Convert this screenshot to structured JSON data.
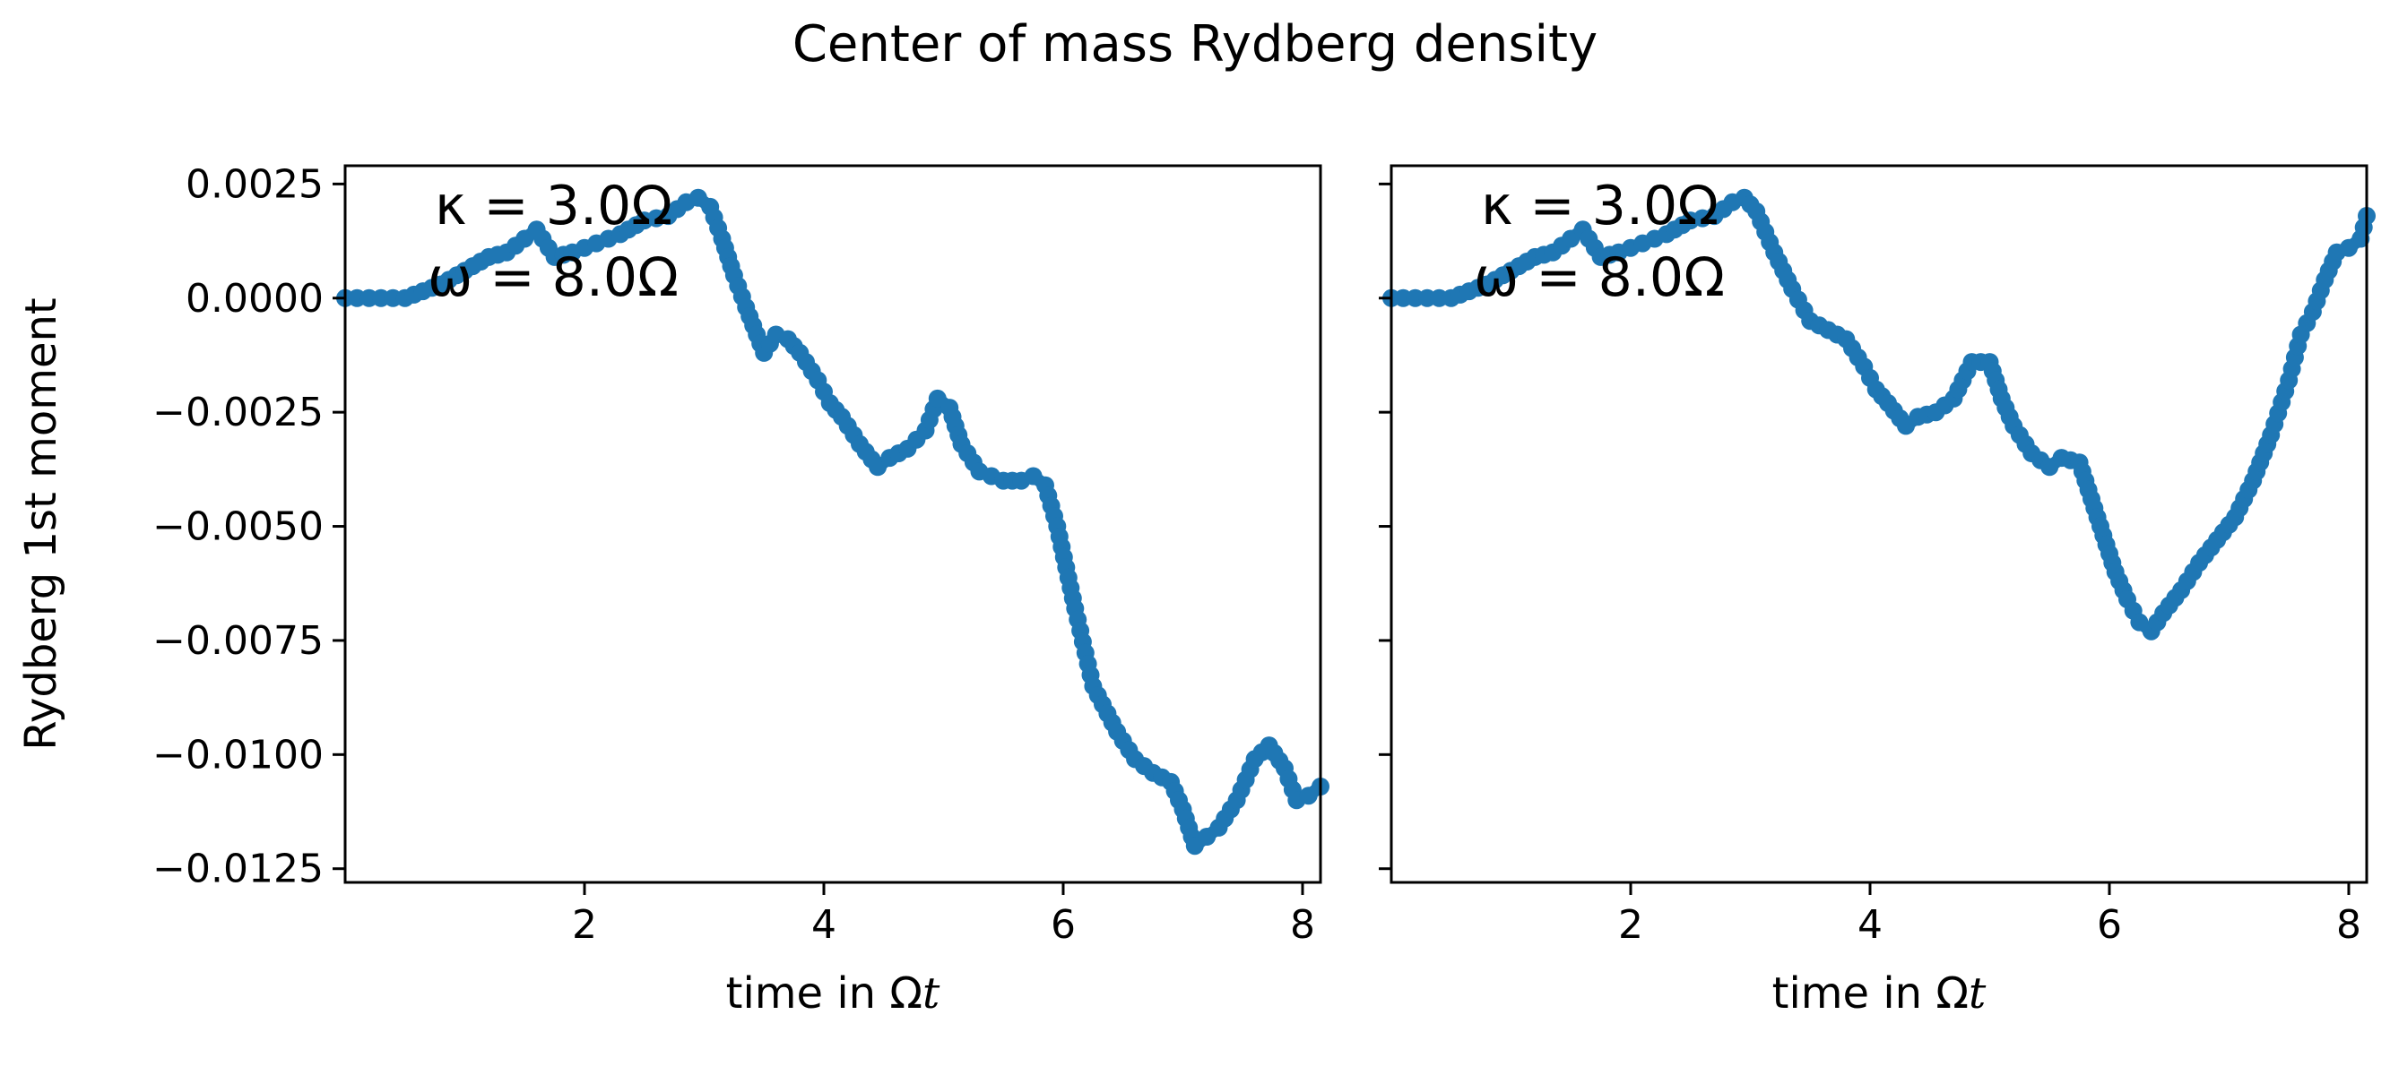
{
  "figure": {
    "title": "Center of mass Rydberg density"
  },
  "colors": {
    "series": "#1f77b4",
    "axes": "#000000",
    "background": "#ffffff"
  },
  "chart_data": [
    {
      "type": "scatter",
      "panel": "left",
      "title": "",
      "xlabel_text": "time in Ω",
      "xlabel_var": "t",
      "ylabel": "Rydberg 1st moment",
      "xlim": [
        0,
        8.15
      ],
      "ylim": [
        -0.0128,
        0.0029
      ],
      "x_ticks": [
        2,
        4,
        6,
        8
      ],
      "x_tick_labels": [
        "2",
        "4",
        "6",
        "8"
      ],
      "y_ticks": [
        0.0025,
        0.0,
        -0.0025,
        -0.005,
        -0.0075,
        -0.01,
        -0.0125
      ],
      "y_tick_labels": [
        "0.0025",
        "0.0000",
        "−0.0025",
        "−0.0050",
        "−0.0075",
        "−0.0100",
        "−0.0125"
      ],
      "annotations": [
        "κ = 3.0Ω",
        "ω = 8.0Ω"
      ],
      "grid": false,
      "series": [
        {
          "x": [
            0.0,
            0.3,
            0.5,
            0.8,
            1.0,
            1.2,
            1.35,
            1.5,
            1.6,
            1.75,
            1.9,
            2.1,
            2.3,
            2.5,
            2.7,
            2.85,
            2.95,
            3.05,
            3.15,
            3.25,
            3.35,
            3.5,
            3.6,
            3.7,
            3.8,
            3.95,
            4.05,
            4.15,
            4.3,
            4.45,
            4.55,
            4.7,
            4.85,
            4.95,
            5.05,
            5.15,
            5.3,
            5.5,
            5.65,
            5.75,
            5.85,
            5.95,
            6.1,
            6.25,
            6.45,
            6.6,
            6.75,
            6.9,
            7.0,
            7.1,
            7.2,
            7.3,
            7.45,
            7.6,
            7.72,
            7.85,
            7.95,
            8.05,
            8.15
          ],
          "y": [
            0.0,
            0.0,
            0.0,
            0.0003,
            0.0006,
            0.0009,
            0.001,
            0.0013,
            0.0015,
            0.0009,
            0.001,
            0.0012,
            0.0014,
            0.0017,
            0.0018,
            0.0021,
            0.0022,
            0.002,
            0.0013,
            0.0005,
            -0.0002,
            -0.0012,
            -0.0008,
            -0.0009,
            -0.0012,
            -0.0018,
            -0.0023,
            -0.0026,
            -0.0032,
            -0.0037,
            -0.0035,
            -0.0033,
            -0.0029,
            -0.0022,
            -0.0024,
            -0.0032,
            -0.0038,
            -0.004,
            -0.004,
            -0.0039,
            -0.0041,
            -0.005,
            -0.0068,
            -0.0085,
            -0.0095,
            -0.0101,
            -0.0104,
            -0.0106,
            -0.0112,
            -0.012,
            -0.0118,
            -0.0116,
            -0.011,
            -0.0101,
            -0.0098,
            -0.0103,
            -0.011,
            -0.0109,
            -0.0107
          ]
        }
      ]
    },
    {
      "type": "scatter",
      "panel": "right",
      "title": "",
      "xlabel_text": "time in Ω",
      "xlabel_var": "t",
      "ylabel": "",
      "xlim": [
        0,
        8.15
      ],
      "ylim": [
        -0.0128,
        0.0029
      ],
      "x_ticks": [
        2,
        4,
        6,
        8
      ],
      "x_tick_labels": [
        "2",
        "4",
        "6",
        "8"
      ],
      "y_ticks": [
        0.0025,
        0.0,
        -0.0025,
        -0.005,
        -0.0075,
        -0.01,
        -0.0125
      ],
      "y_tick_labels": [],
      "annotations": [
        "κ = 3.0Ω",
        "ω = 8.0Ω"
      ],
      "grid": false,
      "series": [
        {
          "x": [
            0.0,
            0.3,
            0.5,
            0.8,
            1.0,
            1.2,
            1.35,
            1.5,
            1.6,
            1.75,
            1.9,
            2.1,
            2.3,
            2.5,
            2.7,
            2.85,
            2.95,
            3.05,
            3.2,
            3.35,
            3.5,
            3.65,
            3.8,
            3.95,
            4.05,
            4.15,
            4.3,
            4.4,
            4.55,
            4.7,
            4.85,
            5.0,
            5.1,
            5.2,
            5.35,
            5.5,
            5.6,
            5.75,
            5.85,
            5.95,
            6.05,
            6.15,
            6.25,
            6.35,
            6.45,
            6.6,
            6.75,
            6.9,
            7.05,
            7.2,
            7.35,
            7.5,
            7.6,
            7.7,
            7.8,
            7.9,
            8.0,
            8.1,
            8.15
          ],
          "y": [
            0.0,
            0.0,
            0.0,
            0.0003,
            0.0006,
            0.0009,
            0.001,
            0.0013,
            0.0015,
            0.0009,
            0.001,
            0.0012,
            0.0014,
            0.0017,
            0.0018,
            0.0021,
            0.0022,
            0.0019,
            0.001,
            0.0002,
            -0.0005,
            -0.0007,
            -0.0009,
            -0.0015,
            -0.002,
            -0.0023,
            -0.0028,
            -0.0026,
            -0.0025,
            -0.0022,
            -0.0014,
            -0.0014,
            -0.0022,
            -0.0028,
            -0.0034,
            -0.0037,
            -0.0035,
            -0.0036,
            -0.0044,
            -0.0052,
            -0.006,
            -0.0066,
            -0.0071,
            -0.0073,
            -0.0069,
            -0.0064,
            -0.0058,
            -0.0053,
            -0.0048,
            -0.004,
            -0.003,
            -0.0018,
            -0.0008,
            -0.0003,
            0.0004,
            0.001,
            0.0011,
            0.0013,
            0.0018
          ]
        }
      ]
    }
  ]
}
